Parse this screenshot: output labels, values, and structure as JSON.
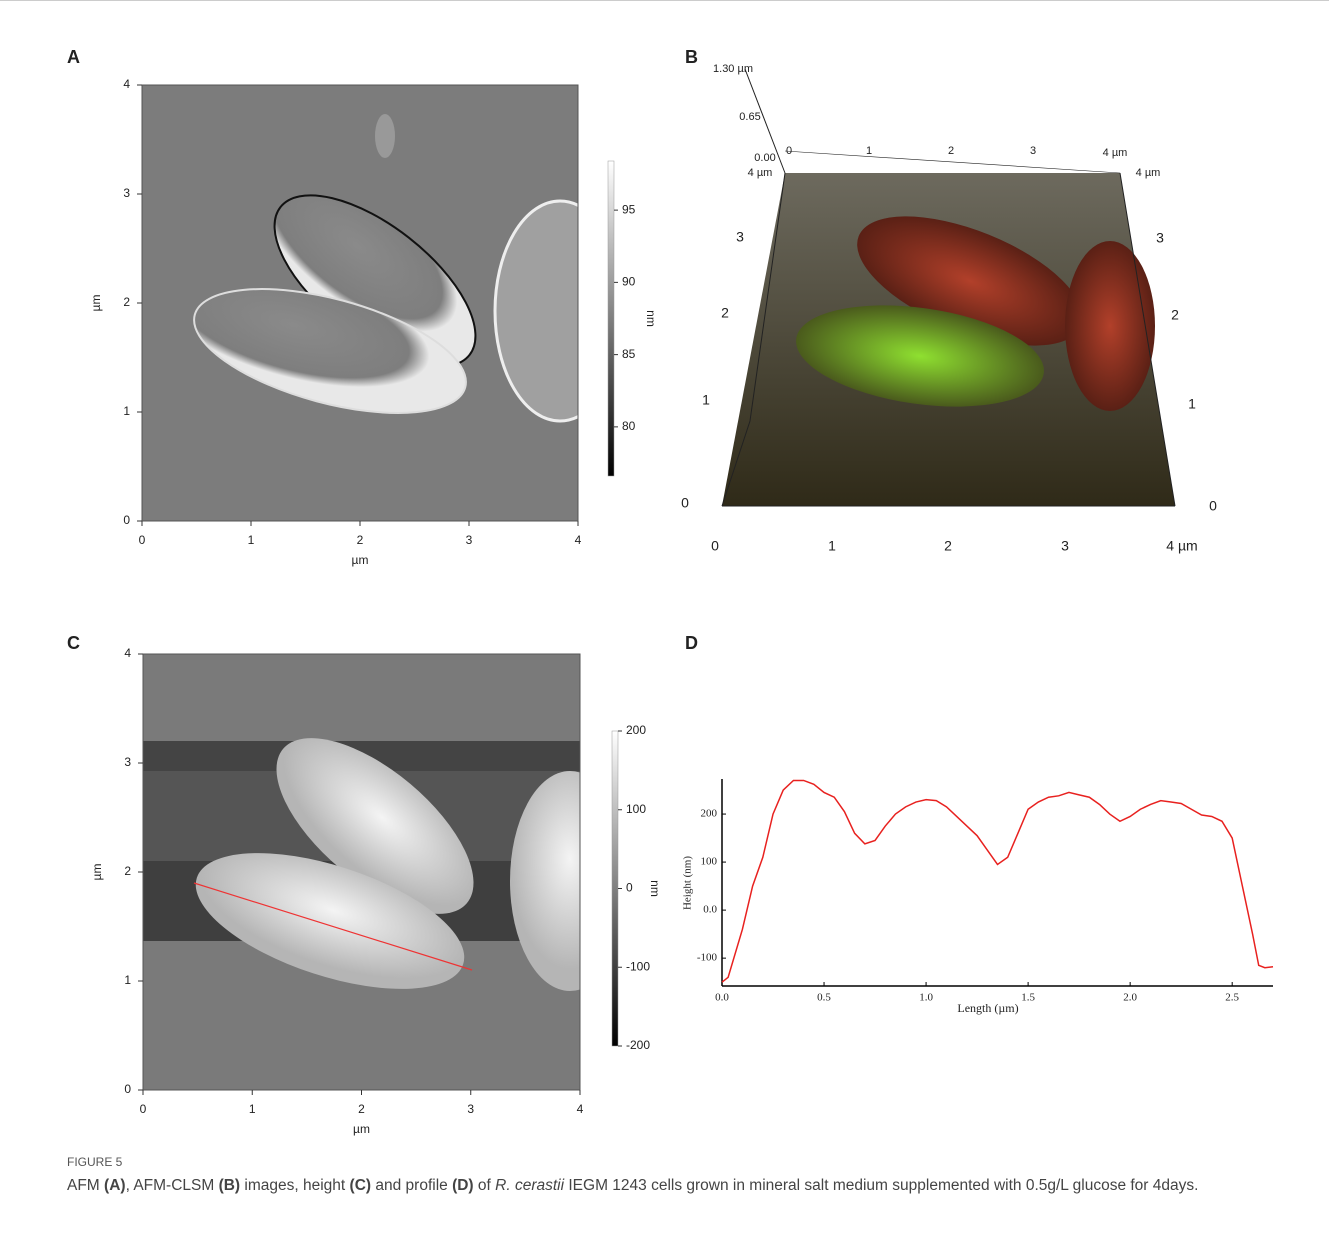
{
  "panels": [
    {
      "label": "A",
      "xlabel": "µm",
      "ylabel": "µm",
      "xlim": [
        0,
        4
      ],
      "ylim": [
        0,
        4
      ],
      "xticks": [
        0,
        1,
        2,
        3,
        4
      ],
      "yticks": [
        0,
        1,
        2,
        3,
        4
      ],
      "colorbar": {
        "label": "nm",
        "lim": [
          76.6,
          98.4
        ],
        "ticks": [
          80,
          85,
          90,
          95
        ]
      }
    },
    {
      "label": "B",
      "z_ticks": [
        {
          "value": 1.3,
          "label": "1.30 µm"
        },
        0.65,
        {
          "value": 0,
          "label": "0.00"
        }
      ],
      "top_x_ticks": [
        0,
        1,
        2,
        3,
        {
          "value": 4,
          "label": "4 µm"
        }
      ],
      "left_y_ticks": [
        0,
        1,
        2,
        3,
        {
          "value": 4,
          "label": "4 µm"
        }
      ],
      "right_y_ticks": [
        0,
        1,
        2,
        3,
        {
          "value": 4,
          "label": "4 µm"
        }
      ],
      "bottom_x_ticks": [
        0,
        1,
        2,
        3,
        {
          "value": 4,
          "label": "4 µm"
        }
      ]
    },
    {
      "label": "C",
      "xlabel": "µm",
      "ylabel": "µm",
      "xlim": [
        0,
        4
      ],
      "ylim": [
        0,
        4
      ],
      "xticks": [
        0,
        1,
        2,
        3,
        4
      ],
      "yticks": [
        0,
        1,
        2,
        3,
        4
      ],
      "colorbar": {
        "label": "nm",
        "lim": [
          -200,
          200
        ],
        "ticks": [
          -200,
          -100,
          0,
          100,
          200
        ]
      }
    },
    {
      "label": "D",
      "type": "line",
      "xlabel": "Length (µm)",
      "ylabel": "Height (nm)",
      "color": "#e8211f",
      "xlim": [
        0,
        2.7
      ],
      "ylim": [
        -158,
        273
      ],
      "xticks": [
        {
          "value": 0,
          "label": "0.0"
        },
        0.5,
        {
          "value": 1,
          "label": "1.0"
        },
        1.5,
        {
          "value": 2,
          "label": "2.0"
        },
        2.5
      ],
      "yticks": [
        -100,
        {
          "value": 0,
          "label": "0.0"
        },
        100,
        200
      ],
      "x": [
        0,
        0.03,
        0.1,
        0.15,
        0.2,
        0.25,
        0.3,
        0.35,
        0.4,
        0.45,
        0.5,
        0.55,
        0.6,
        0.65,
        0.7,
        0.75,
        0.8,
        0.85,
        0.9,
        0.95,
        1.0,
        1.05,
        1.1,
        1.15,
        1.2,
        1.25,
        1.3,
        1.35,
        1.4,
        1.45,
        1.5,
        1.55,
        1.6,
        1.65,
        1.7,
        1.75,
        1.8,
        1.85,
        1.9,
        1.95,
        2.0,
        2.05,
        2.1,
        2.15,
        2.2,
        2.25,
        2.3,
        2.35,
        2.4,
        2.45,
        2.5,
        2.55,
        2.6,
        2.63,
        2.66,
        2.7
      ],
      "y": [
        -150,
        -140,
        -40,
        50,
        110,
        200,
        250,
        270,
        270,
        262,
        245,
        235,
        205,
        160,
        138,
        145,
        175,
        200,
        215,
        225,
        230,
        228,
        215,
        195,
        175,
        155,
        125,
        95,
        110,
        160,
        210,
        225,
        235,
        238,
        245,
        240,
        235,
        220,
        200,
        185,
        195,
        210,
        220,
        228,
        225,
        222,
        210,
        198,
        195,
        185,
        150,
        50,
        -50,
        -115,
        -120,
        -118
      ]
    }
  ],
  "caption": {
    "figure": "FIGURE 5",
    "segments": [
      "AFM ",
      "(A)",
      ", AFM-CLSM ",
      "(B)",
      " images, height ",
      "(C)",
      " and profile ",
      "(D)",
      " of ",
      "R. cerastii",
      " IEGM 1243 cells grown in mineral salt medium supplemented with 0.5g/L glucose for 4days."
    ]
  }
}
